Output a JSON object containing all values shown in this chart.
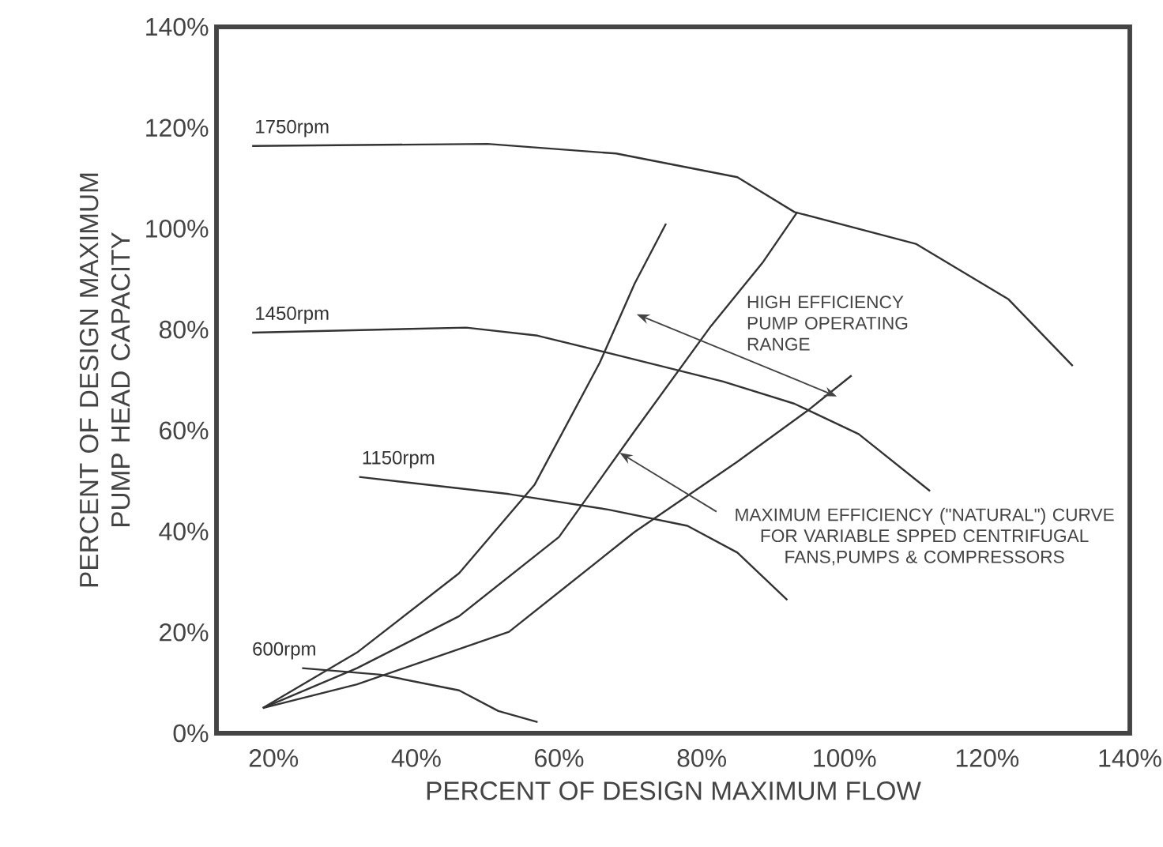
{
  "chart_data": {
    "type": "line",
    "xlabel": "PERCENT OF DESIGN MAXIMUM FLOW",
    "ylabel": "PERCENT OF DESIGN MAXIMUM PUMP HEAD CAPACITY",
    "xlim": [
      12,
      140
    ],
    "ylim": [
      0,
      140
    ],
    "xticks": [
      {
        "value": 20,
        "label": "20%"
      },
      {
        "value": 40,
        "label": "40%"
      },
      {
        "value": 60,
        "label": "60%"
      },
      {
        "value": 80,
        "label": "80%"
      },
      {
        "value": 100,
        "label": "100%"
      },
      {
        "value": 120,
        "label": "120%"
      },
      {
        "value": 140,
        "label": "140%"
      }
    ],
    "yticks": [
      {
        "value": 0,
        "label": "0%"
      },
      {
        "value": 20,
        "label": "20%"
      },
      {
        "value": 40,
        "label": "40%"
      },
      {
        "value": 60,
        "label": "60%"
      },
      {
        "value": 80,
        "label": "80%"
      },
      {
        "value": 100,
        "label": "100%"
      },
      {
        "value": 120,
        "label": "120%"
      },
      {
        "value": 140,
        "label": "140%"
      }
    ],
    "marker": "none",
    "line_style": "solid",
    "series": [
      {
        "name": "1750rpm",
        "color": "#333333",
        "x": [
          17,
          50,
          68,
          85,
          93,
          110,
          123,
          132
        ],
        "values": [
          116.4,
          116.8,
          114.9,
          110.2,
          103.3,
          97,
          86,
          72.8
        ]
      },
      {
        "name": "1450rpm",
        "color": "#333333",
        "x": [
          17,
          47,
          57,
          68,
          83,
          93,
          102,
          112
        ],
        "values": [
          79.4,
          80.4,
          78.8,
          75,
          69.7,
          65.3,
          59.3,
          48
        ]
      },
      {
        "name": "1150rpm",
        "color": "#333333",
        "x": [
          32,
          53,
          67,
          78,
          85,
          92
        ],
        "values": [
          50.8,
          47.4,
          44.3,
          41.1,
          35.8,
          26.4
        ]
      },
      {
        "name": "600rpm",
        "color": "#333333",
        "x": [
          24,
          35,
          46,
          51.5,
          57
        ],
        "values": [
          12.9,
          11.6,
          8.5,
          4.4,
          2.2
        ]
      },
      {
        "color": "#333333",
        "x": [
          18.5,
          31.7,
          46,
          56.6,
          65.7,
          70.6,
          75
        ],
        "values": [
          5,
          16,
          31.7,
          49.3,
          73.4,
          89.1,
          101
        ]
      },
      {
        "color": "#333333",
        "x": [
          18.5,
          31.7,
          46,
          60,
          70.6,
          81.3,
          88.5,
          93.4
        ],
        "values": [
          5,
          12.9,
          23.2,
          38.9,
          59.9,
          80.7,
          93.2,
          103.3
        ]
      },
      {
        "color": "#333333",
        "x": [
          18.5,
          31.7,
          53,
          70.6,
          84.9,
          94.9,
          101
        ],
        "values": [
          5,
          9.7,
          20.1,
          39.9,
          53.7,
          64,
          70.9
        ]
      }
    ],
    "annotations": [
      "HIGH EFFICIENCY PUMP OPERATING RANGE",
      {
        "text": "MAXIMUM EFFICIENCY (\"NATURAL\") CURVE FOR VARIABLE SPPED CENTRIFUGAL FANS,PUMPS & COMPRESSORS",
        "x": 68.5,
        "y": 55.6
      }
    ]
  }
}
